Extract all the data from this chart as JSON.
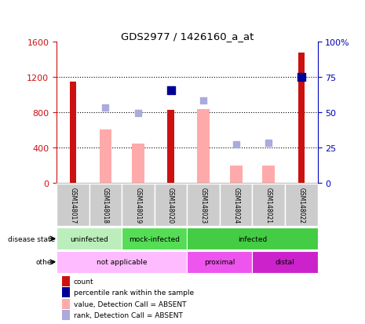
{
  "title": "GDS2977 / 1426160_a_at",
  "samples": [
    "GSM148017",
    "GSM148018",
    "GSM148019",
    "GSM148020",
    "GSM148023",
    "GSM148024",
    "GSM148021",
    "GSM148022"
  ],
  "count_values": [
    1150,
    null,
    null,
    830,
    null,
    null,
    null,
    1480
  ],
  "absent_value_bars": [
    null,
    610,
    450,
    null,
    840,
    200,
    200,
    null
  ],
  "percentile_rank_left": [
    null,
    null,
    null,
    1050,
    null,
    null,
    null,
    1200
  ],
  "absent_rank_left": [
    null,
    860,
    790,
    null,
    940,
    440,
    460,
    null
  ],
  "ylim_left": [
    0,
    1600
  ],
  "ylim_right": [
    0,
    100
  ],
  "yticks_left": [
    0,
    400,
    800,
    1200,
    1600
  ],
  "yticks_right_vals": [
    0,
    25,
    50,
    75,
    100
  ],
  "yticks_right_labels": [
    "0",
    "25",
    "50",
    "75",
    "100%"
  ],
  "count_color": "#cc1111",
  "absent_value_color": "#ffaaaa",
  "percentile_color": "#000099",
  "absent_rank_color": "#aaaadd",
  "left_axis_color": "#cc1111",
  "right_axis_color": "#0000bb",
  "sample_box_color": "#cccccc",
  "disease_groups": [
    {
      "label": "uninfected",
      "start": 0,
      "end": 2,
      "color": "#bbeebb"
    },
    {
      "label": "mock-infected",
      "start": 2,
      "end": 4,
      "color": "#55dd55"
    },
    {
      "label": "infected",
      "start": 4,
      "end": 8,
      "color": "#44cc44"
    }
  ],
  "other_groups": [
    {
      "label": "not applicable",
      "start": 0,
      "end": 4,
      "color": "#ffbbff"
    },
    {
      "label": "proximal",
      "start": 4,
      "end": 6,
      "color": "#ee55ee"
    },
    {
      "label": "distal",
      "start": 6,
      "end": 8,
      "color": "#cc22cc"
    }
  ],
  "legend_items": [
    {
      "label": "count",
      "color": "#cc1111"
    },
    {
      "label": "percentile rank within the sample",
      "color": "#000099"
    },
    {
      "label": "value, Detection Call = ABSENT",
      "color": "#ffaaaa"
    },
    {
      "label": "rank, Detection Call = ABSENT",
      "color": "#aaaadd"
    }
  ]
}
